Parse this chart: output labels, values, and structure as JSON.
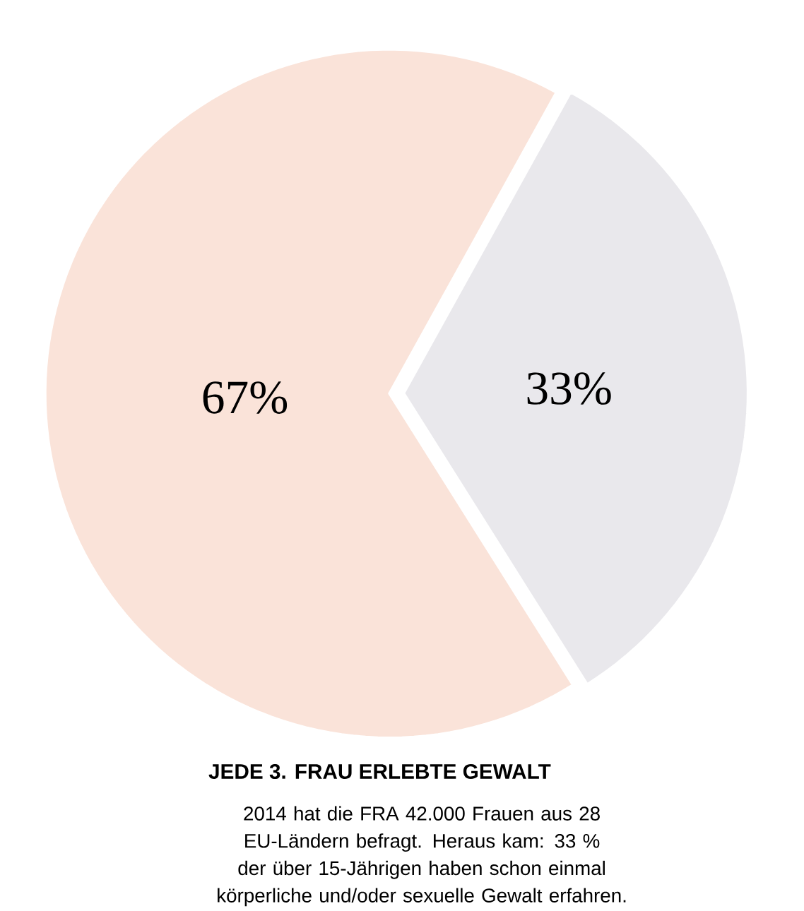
{
  "chart_data": {
    "type": "pie",
    "title": "JEDE 3. FRAU ERLEBTE GEWALT",
    "categories": [
      null,
      null
    ],
    "values": [
      67,
      33
    ],
    "colors": [
      "#fae3d9",
      "#e9e8ec"
    ],
    "value_labels": [
      "67%",
      "33%"
    ],
    "annotations": [
      "2014 hat die FRA 42.000 Frauen aus 28 EU-Ländern befragt. Heraus kam: 33 % der über 15-Jährigen haben schon einmal körperliche und/oder sexuelle Gewalt erfahren."
    ]
  }
}
